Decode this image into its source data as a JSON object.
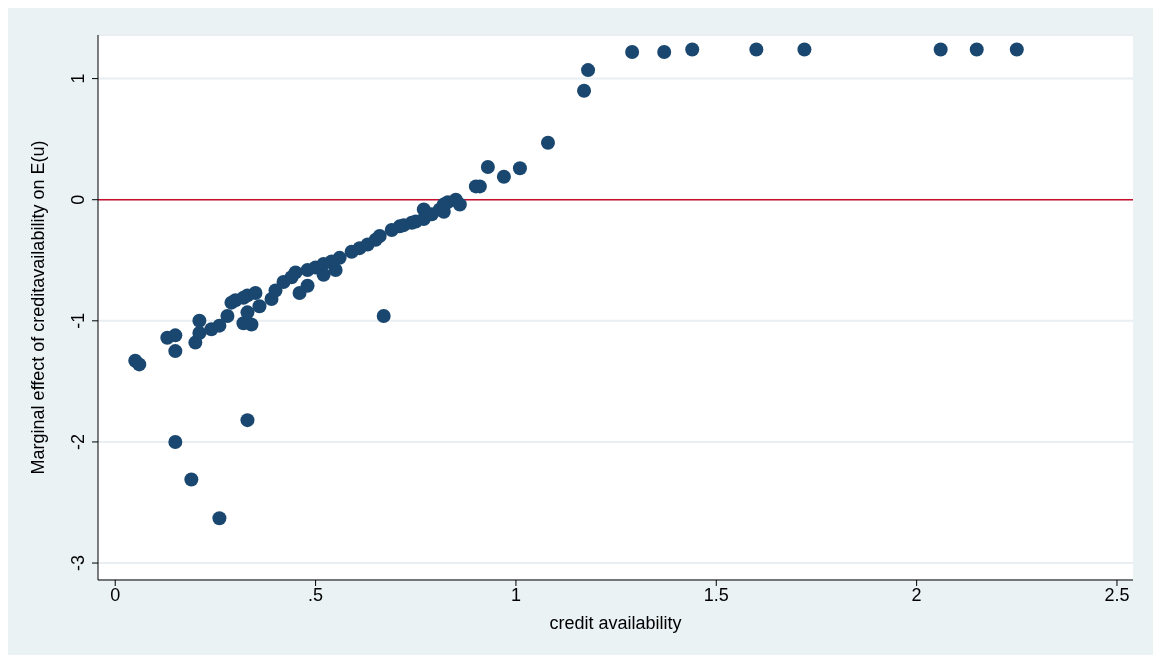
{
  "chart_data": {
    "type": "scatter",
    "xlabel": "credit availability",
    "ylabel": "Marginal effect of creditavailability on E(u)",
    "xlim": [
      -0.043,
      2.54
    ],
    "ylim": [
      -3.14,
      1.36
    ],
    "xticks": [
      {
        "value": 0,
        "label": "0"
      },
      {
        "value": 0.5,
        "label": ".5"
      },
      {
        "value": 1,
        "label": "1"
      },
      {
        "value": 1.5,
        "label": "1.5"
      },
      {
        "value": 2,
        "label": "2"
      },
      {
        "value": 2.5,
        "label": "2.5"
      }
    ],
    "yticks": [
      -3,
      -2,
      -1,
      0,
      1
    ],
    "grid": "y",
    "marker": "circle",
    "legend": false,
    "ref_lines": [
      {
        "axis": "y",
        "value": 0,
        "color": "#c8102e"
      }
    ],
    "series": [
      {
        "color": "#1a476f",
        "x": [
          0.05,
          0.06,
          0.13,
          0.15,
          0.15,
          0.15,
          0.19,
          0.26,
          0.33,
          0.2,
          0.21,
          0.21,
          0.24,
          0.26,
          0.28,
          0.29,
          0.3,
          0.32,
          0.32,
          0.33,
          0.33,
          0.34,
          0.35,
          0.36,
          0.39,
          0.4,
          0.42,
          0.44,
          0.45,
          0.46,
          0.48,
          0.48,
          0.5,
          0.52,
          0.52,
          0.54,
          0.55,
          0.56,
          0.59,
          0.61,
          0.63,
          0.65,
          0.67,
          0.66,
          0.69,
          0.71,
          0.72,
          0.74,
          0.75,
          0.77,
          0.77,
          0.79,
          0.81,
          0.82,
          0.82,
          0.83,
          0.85,
          0.86,
          0.9,
          0.91,
          0.93,
          0.97,
          1.01,
          1.08,
          1.17,
          1.18,
          1.29,
          1.37,
          1.44,
          1.6,
          1.72,
          2.06,
          2.15,
          2.25
        ],
        "values": [
          -1.33,
          -1.36,
          -1.14,
          -1.12,
          -1.25,
          -2.0,
          -2.31,
          -2.63,
          -1.82,
          -1.18,
          -1.0,
          -1.1,
          -1.07,
          -1.04,
          -0.96,
          -0.85,
          -0.83,
          -1.02,
          -0.81,
          -0.79,
          -0.93,
          -1.03,
          -0.77,
          -0.88,
          -0.82,
          -0.75,
          -0.68,
          -0.64,
          -0.6,
          -0.77,
          -0.58,
          -0.71,
          -0.56,
          -0.53,
          -0.62,
          -0.51,
          -0.58,
          -0.48,
          -0.43,
          -0.4,
          -0.37,
          -0.33,
          -0.96,
          -0.3,
          -0.25,
          -0.22,
          -0.21,
          -0.19,
          -0.18,
          -0.16,
          -0.08,
          -0.12,
          -0.08,
          -0.04,
          -0.1,
          -0.02,
          0.0,
          -0.04,
          0.11,
          0.11,
          0.27,
          0.19,
          0.26,
          0.47,
          0.9,
          1.07,
          1.22,
          1.22,
          1.24,
          1.24,
          1.24,
          1.24,
          1.24,
          1.24
        ]
      }
    ]
  }
}
